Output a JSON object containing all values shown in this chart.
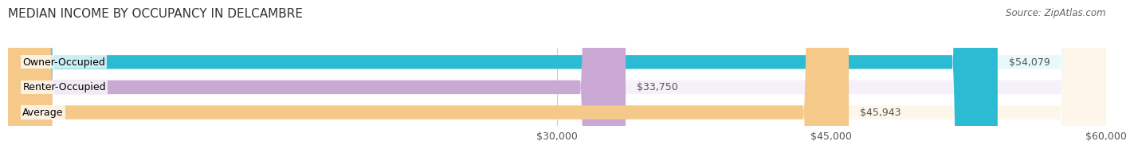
{
  "title": "MEDIAN INCOME BY OCCUPANCY IN DELCAMBRE",
  "source": "Source: ZipAtlas.com",
  "categories": [
    "Owner-Occupied",
    "Renter-Occupied",
    "Average"
  ],
  "values": [
    54079,
    33750,
    45943
  ],
  "bar_colors": [
    "#2bbcd4",
    "#c9a9d4",
    "#f5c98a"
  ],
  "bar_bg_colors": [
    "#e8f9fc",
    "#f5f0fa",
    "#fef6ea"
  ],
  "value_labels": [
    "$54,079",
    "$33,750",
    "$45,943"
  ],
  "xlim": [
    0,
    60000
  ],
  "xticks": [
    30000,
    45000,
    60000
  ],
  "xtick_labels": [
    "$30,000",
    "$45,000",
    "$60,000"
  ],
  "bar_height": 0.55,
  "label_fontsize": 9,
  "title_fontsize": 11,
  "value_fontsize": 9,
  "source_fontsize": 8.5,
  "background_color": "#ffffff",
  "value_label_color_outside": "#555555"
}
